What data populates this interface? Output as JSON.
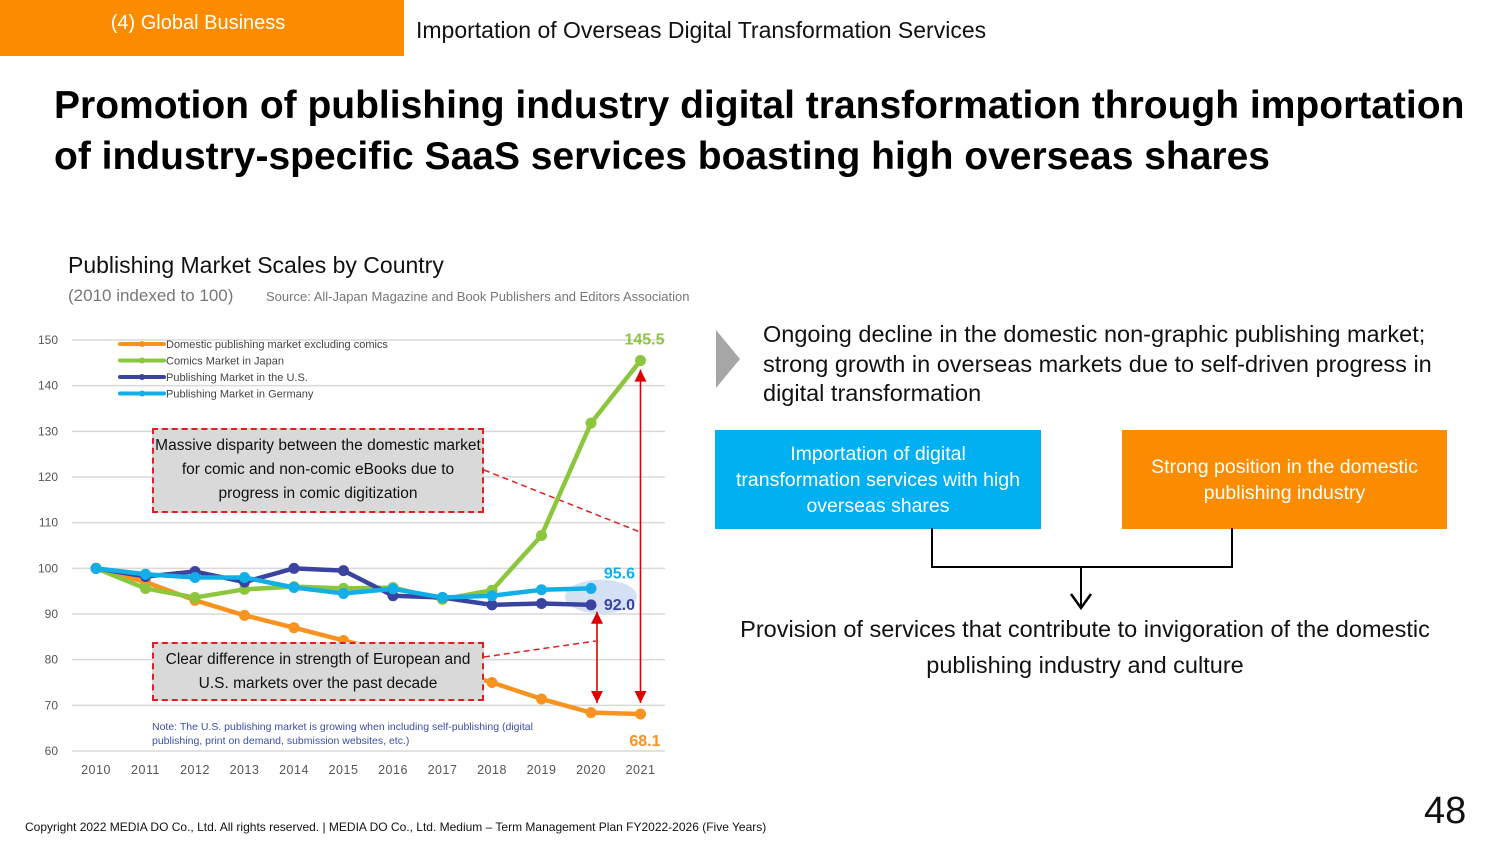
{
  "header": {
    "section_label": "(4) Global Business",
    "subtitle": "Importation of Overseas Digital Transformation Services"
  },
  "headline": "Promotion of publishing industry digital transformation through importation of industry-specific SaaS services boasting high overseas shares",
  "chart_data": {
    "type": "line",
    "title": "Publishing Market Scales by Country",
    "subtitle": "(2010 indexed to 100)",
    "source": "Source: All-Japan Magazine and Book Publishers and Editors Association",
    "xlabel": "",
    "ylabel": "",
    "x": [
      "2010",
      "2011",
      "2012",
      "2013",
      "2014",
      "2015",
      "2016",
      "2017",
      "2018",
      "2019",
      "2020",
      "2021"
    ],
    "ylim": [
      60,
      150
    ],
    "yticks": [
      60,
      70,
      80,
      90,
      100,
      110,
      120,
      130,
      140,
      150
    ],
    "grid": true,
    "legend_position": "top-left",
    "series": [
      {
        "name": "Domestic publishing market excluding comics",
        "color": "#f7931e",
        "values": [
          100,
          97,
          93.0,
          89.7,
          87.0,
          84.2,
          81.5,
          78.0,
          75.0,
          71.4,
          68.4,
          68.1
        ]
      },
      {
        "name": "Comics Market in Japan",
        "color": "#8cc63f",
        "values": [
          100,
          95.6,
          93.6,
          95.4,
          96.0,
          95.6,
          95.8,
          93.2,
          95.2,
          107.2,
          131.8,
          145.5
        ]
      },
      {
        "name": "Publishing Market in the U.S.",
        "color": "#3a44a0",
        "values": [
          100,
          98.2,
          99.3,
          97.0,
          100.0,
          99.5,
          94.0,
          93.6,
          92.0,
          92.3,
          92.0,
          null
        ]
      },
      {
        "name": "Publishing Market in Germany",
        "color": "#13aee8",
        "values": [
          100,
          98.7,
          98.0,
          98.0,
          95.8,
          94.5,
          95.5,
          93.6,
          94.0,
          95.3,
          95.6,
          null
        ]
      }
    ],
    "data_labels": [
      {
        "text": "145.5",
        "series": "Comics Market in Japan",
        "x": "2021",
        "color": "#8cc63f"
      },
      {
        "text": "95.6",
        "series": "Publishing Market in Germany",
        "x": "2020",
        "color": "#13aee8"
      },
      {
        "text": "92.0",
        "series": "Publishing Market in the U.S.",
        "x": "2020",
        "color": "#3a44a0"
      },
      {
        "text": "68.1",
        "series": "Domestic publishing market excluding comics",
        "x": "2021",
        "color": "#f7931e"
      }
    ],
    "annotations": [
      "Massive disparity between the domestic market for comic and non-comic eBooks due to progress in comic digitization",
      "Clear difference in strength of European and U.S. markets over the past decade"
    ],
    "note": "Note: The U.S. publishing market is growing when including self-publishing (digital publishing, print on demand, submission websites, etc.)"
  },
  "callouts": {
    "comics_gap": "Massive disparity between the domestic market for comic and non-comic eBooks due to progress in comic digitization",
    "eu_us_gap": "Clear difference in strength of European and U.S. markets over the past decade",
    "note": "Note: The U.S. publishing market is growing when including self-publishing (digital publishing, print on demand, submission websites, etc.)"
  },
  "insight": "Ongoing decline in the domestic non-graphic publishing market; strong growth in overseas markets due to self-driven progress in digital transformation",
  "diagram": {
    "left_box": "Importation of digital transformation services with high overseas shares",
    "right_box": "Strong position in the domestic publishing industry",
    "result": "Provision of services that contribute to invigoration of the domestic publishing industry and culture",
    "colors": {
      "blue": "#00b0f0",
      "orange": "#fb8c00"
    }
  },
  "footer": {
    "copyright": "Copyright 2022 MEDIA DO Co., Ltd. All rights reserved.  | MEDIA DO Co., Ltd. Medium – Term Management Plan FY2022-2026 (Five Years)",
    "page_number": "48"
  }
}
